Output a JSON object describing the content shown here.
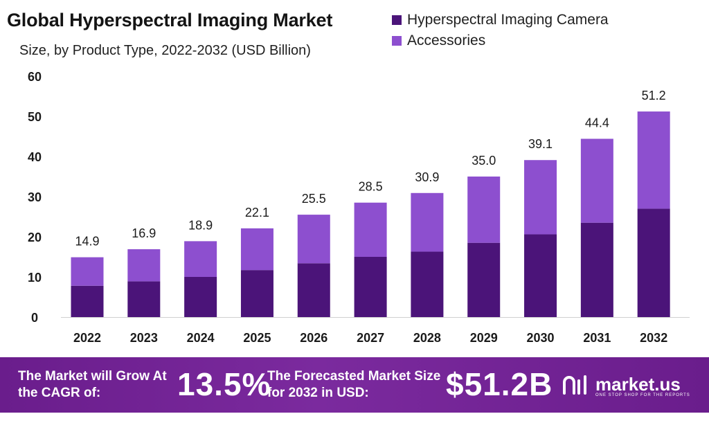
{
  "chart_data": {
    "type": "bar",
    "stacked": true,
    "title": "Global Hyperspectral Imaging Market",
    "subtitle": "Size, by Product Type, 2022-2032 (USD Billion)",
    "categories": [
      "2022",
      "2023",
      "2024",
      "2025",
      "2026",
      "2027",
      "2028",
      "2029",
      "2030",
      "2031",
      "2032"
    ],
    "series": [
      {
        "name": "Hyperspectral Imaging Camera",
        "color": "#4b1479",
        "values": [
          7.8,
          8.9,
          10.0,
          11.7,
          13.4,
          15.0,
          16.3,
          18.5,
          20.6,
          23.5,
          27.0
        ]
      },
      {
        "name": "Accessories",
        "color": "#8d4fcf",
        "values": [
          7.1,
          8.0,
          8.9,
          10.4,
          12.1,
          13.5,
          14.6,
          16.5,
          18.5,
          20.9,
          24.2
        ]
      }
    ],
    "totals": [
      "14.9",
      "16.9",
      "18.9",
      "22.1",
      "25.5",
      "28.5",
      "30.9",
      "35.0",
      "39.1",
      "44.4",
      "51.2"
    ],
    "ylim": [
      0,
      60
    ],
    "yticks": [
      0,
      10,
      20,
      30,
      40,
      50,
      60
    ],
    "grid": false,
    "legend_position": "top-right"
  },
  "banner": {
    "cagr_text": "The Market will Grow At the CAGR of:",
    "cagr_value": "13.5%",
    "forecast_text": "The Forecasted Market Size for 2032 in USD:",
    "forecast_value": "$51.2B",
    "brand_name": "market.us",
    "brand_tagline": "ONE STOP SHOP FOR THE REPORTS"
  }
}
